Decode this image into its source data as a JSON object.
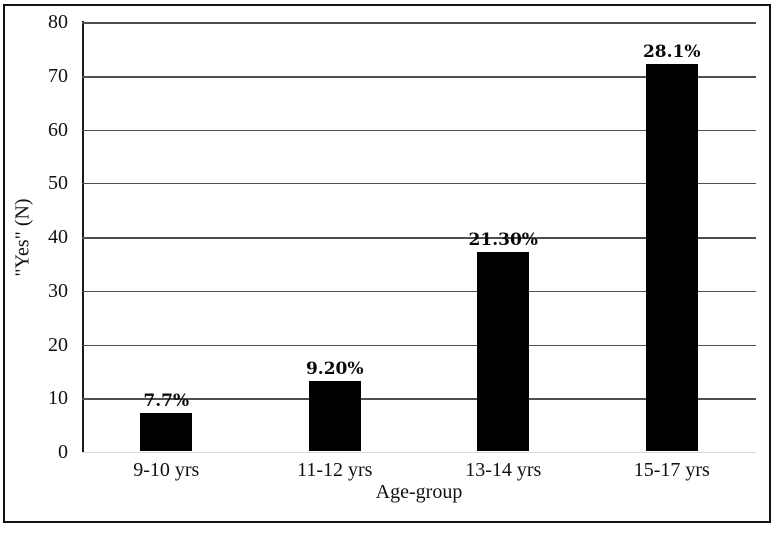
{
  "chart_data": {
    "type": "bar",
    "title": "",
    "categories": [
      "9-10 yrs",
      "11-12 yrs",
      "13-14 yrs",
      "15-17 yrs"
    ],
    "values": [
      7,
      13,
      37,
      72
    ],
    "bar_labels": [
      "7.7%",
      "9.20%",
      "21.30%",
      "28.1%"
    ],
    "xlabel": "Age-group",
    "ylabel": "\"Yes\" (N)",
    "ylim": [
      0,
      80
    ],
    "yticks": [
      0,
      10,
      20,
      30,
      40,
      50,
      60,
      70,
      80
    ],
    "grid": "horizontal-only",
    "legend_position": "none",
    "bar_color": "#000000",
    "gridline_color": "#4f4f4f",
    "baseline_color": "#d9d9d9",
    "axis_line_color": "#1a1a1a",
    "frame_color": "#111111"
  }
}
